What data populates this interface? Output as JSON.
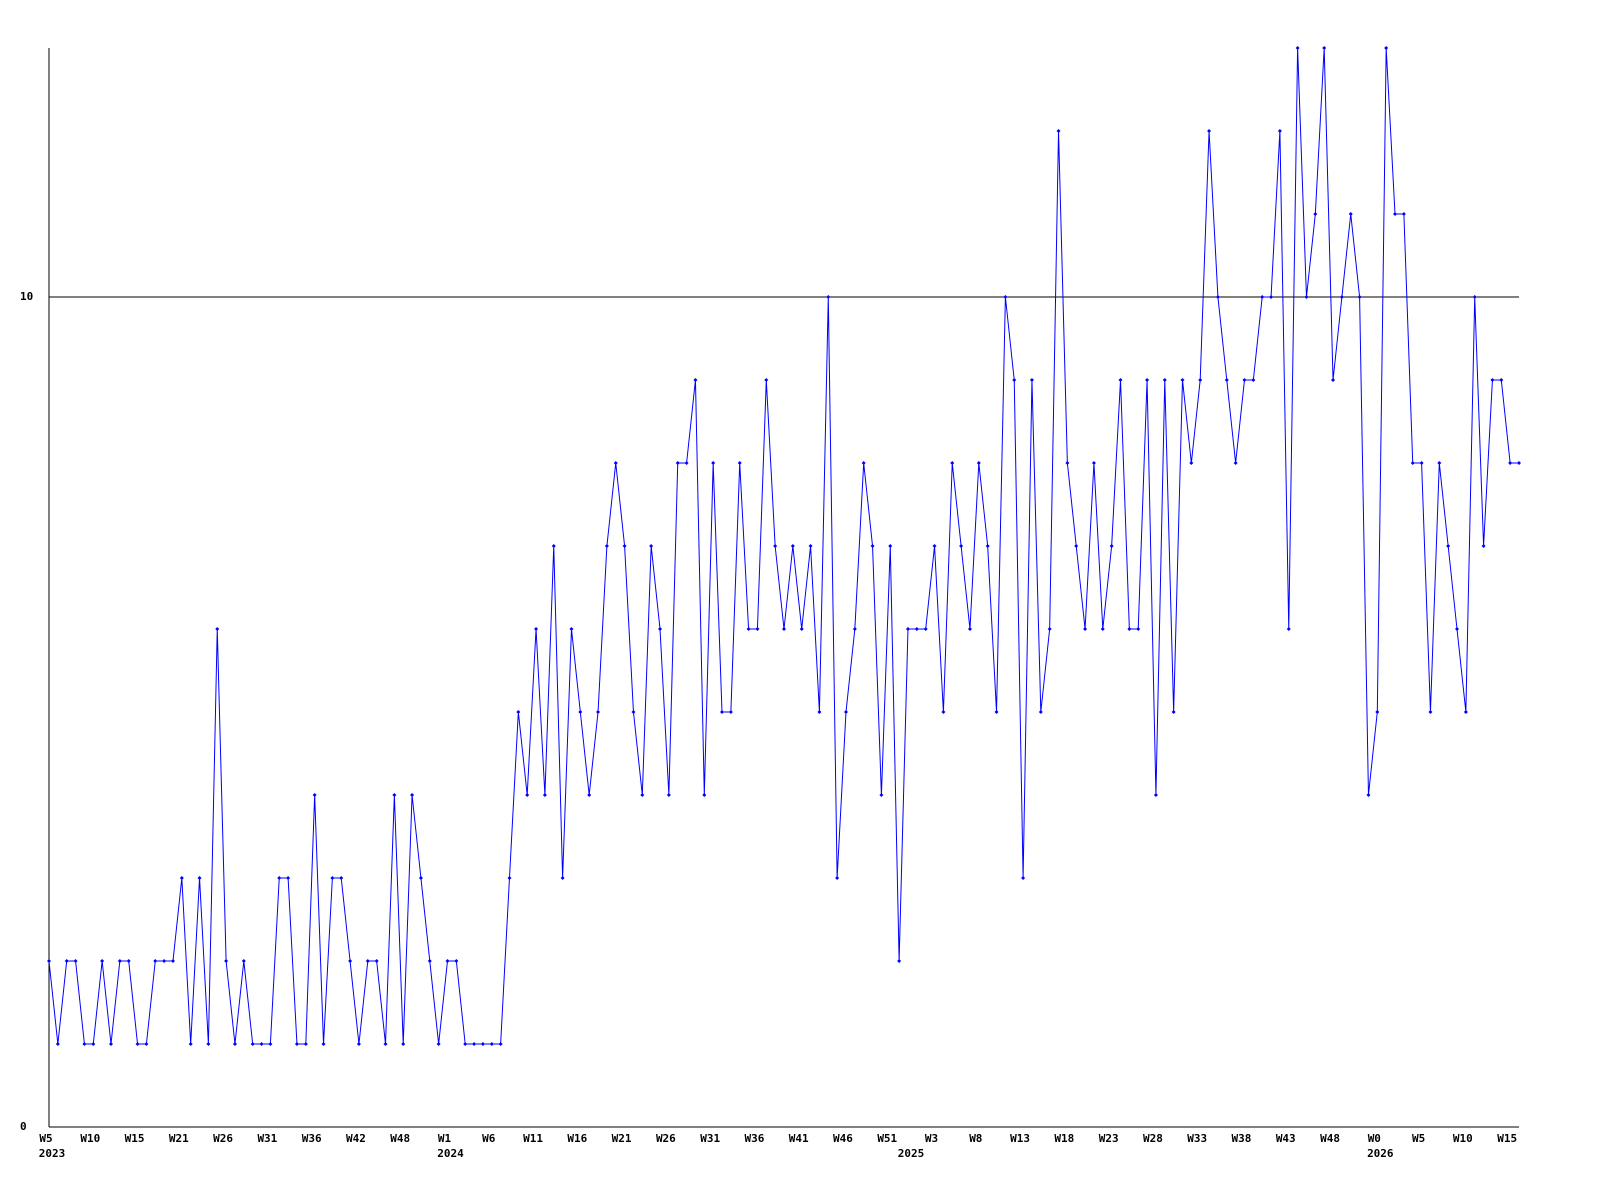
{
  "chart_data": {
    "type": "line",
    "categories": [
      "W5",
      null,
      null,
      null,
      null,
      "W10",
      null,
      null,
      null,
      null,
      "W15",
      null,
      null,
      null,
      null,
      "W21",
      null,
      null,
      null,
      null,
      "W26",
      null,
      null,
      null,
      null,
      "W31",
      null,
      null,
      null,
      null,
      "W36",
      null,
      null,
      null,
      null,
      "W42",
      null,
      null,
      null,
      null,
      "W48",
      null,
      null,
      null,
      null,
      "W1",
      null,
      null,
      null,
      null,
      "W6",
      null,
      null,
      null,
      null,
      "W11",
      null,
      null,
      null,
      null,
      "W16",
      null,
      null,
      null,
      null,
      "W21",
      null,
      null,
      null,
      null,
      "W26",
      null,
      null,
      null,
      null,
      "W31",
      null,
      null,
      null,
      null,
      "W36",
      null,
      null,
      null,
      null,
      "W41",
      null,
      null,
      null,
      null,
      "W46",
      null,
      null,
      null,
      null,
      "W51",
      null,
      null,
      null,
      null,
      "W3",
      null,
      null,
      null,
      null,
      "W8",
      null,
      null,
      null,
      null,
      "W13",
      null,
      null,
      null,
      null,
      "W18",
      null,
      null,
      null,
      null,
      "W23",
      null,
      null,
      null,
      null,
      "W28",
      null,
      null,
      null,
      null,
      "W33",
      null,
      null,
      null,
      null,
      "W38",
      null,
      null,
      null,
      null,
      "W43",
      null,
      null,
      null,
      null,
      "W48",
      null,
      null,
      null,
      null,
      "W0",
      null,
      null,
      null,
      null,
      "W5",
      null,
      null,
      null,
      null,
      "W10",
      null,
      null,
      null,
      null,
      "W15",
      null
    ],
    "year_labels": [
      "2023",
      null,
      null,
      null,
      null,
      null,
      null,
      null,
      null,
      null,
      null,
      null,
      null,
      null,
      null,
      null,
      null,
      null,
      null,
      null,
      null,
      null,
      null,
      null,
      null,
      null,
      null,
      null,
      null,
      null,
      null,
      null,
      null,
      null,
      null,
      null,
      null,
      null,
      null,
      null,
      null,
      null,
      null,
      null,
      null,
      "2024",
      null,
      null,
      null,
      null,
      null,
      null,
      null,
      null,
      null,
      null,
      null,
      null,
      null,
      null,
      null,
      null,
      null,
      null,
      null,
      null,
      null,
      null,
      null,
      null,
      null,
      null,
      null,
      null,
      null,
      null,
      null,
      null,
      null,
      null,
      null,
      null,
      null,
      null,
      null,
      null,
      null,
      null,
      null,
      null,
      null,
      null,
      null,
      null,
      null,
      null,
      null,
      "2025",
      null,
      null,
      null,
      null,
      null,
      null,
      null,
      null,
      null,
      null,
      null,
      null,
      null,
      null,
      null,
      null,
      null,
      null,
      null,
      null,
      null,
      null,
      null,
      null,
      null,
      null,
      null,
      null,
      null,
      null,
      null,
      null,
      null,
      null,
      null,
      null,
      null,
      null,
      null,
      null,
      null,
      null,
      null,
      null,
      null,
      null,
      null,
      null,
      null,
      null,
      null,
      null,
      "2026",
      null,
      null,
      null,
      null,
      null,
      null,
      null,
      null,
      null,
      null,
      null,
      null,
      null,
      null,
      null,
      null
    ],
    "series": [
      {
        "color": "#0000ff",
        "values": [
          2,
          1,
          2,
          2,
          1,
          1,
          2,
          1,
          2,
          2,
          1,
          1,
          2,
          2,
          2,
          3,
          1,
          3,
          1,
          6,
          2,
          1,
          2,
          1,
          1,
          1,
          3,
          3,
          1,
          1,
          4,
          1,
          3,
          3,
          2,
          1,
          2,
          2,
          1,
          4,
          1,
          4,
          3,
          2,
          1,
          2,
          2,
          1,
          1,
          1,
          1,
          1,
          3,
          5,
          4,
          6,
          4,
          7,
          3,
          6,
          5,
          4,
          5,
          7,
          8,
          7,
          5,
          4,
          7,
          6,
          4,
          8,
          8,
          9,
          4,
          8,
          5,
          5,
          8,
          6,
          6,
          9,
          7,
          6,
          7,
          6,
          7,
          5,
          10,
          3,
          5,
          6,
          8,
          7,
          4,
          7,
          2,
          6,
          6,
          6,
          7,
          5,
          8,
          7,
          6,
          8,
          7,
          5,
          10,
          9,
          3,
          9,
          5,
          6,
          12,
          8,
          7,
          6,
          8,
          6,
          7,
          9,
          6,
          6,
          9,
          4,
          9,
          5,
          9,
          8,
          9,
          12,
          10,
          9,
          8,
          9,
          9,
          10,
          10,
          12,
          6,
          13,
          10,
          11,
          13,
          9,
          10,
          11,
          10,
          4,
          5,
          13,
          11,
          11,
          8,
          8,
          5,
          8,
          7,
          6,
          5,
          10,
          7,
          9,
          9,
          8,
          8
        ]
      }
    ],
    "ylim": [
      0,
      13
    ],
    "yticks": [
      0,
      10
    ],
    "grid": true
  }
}
